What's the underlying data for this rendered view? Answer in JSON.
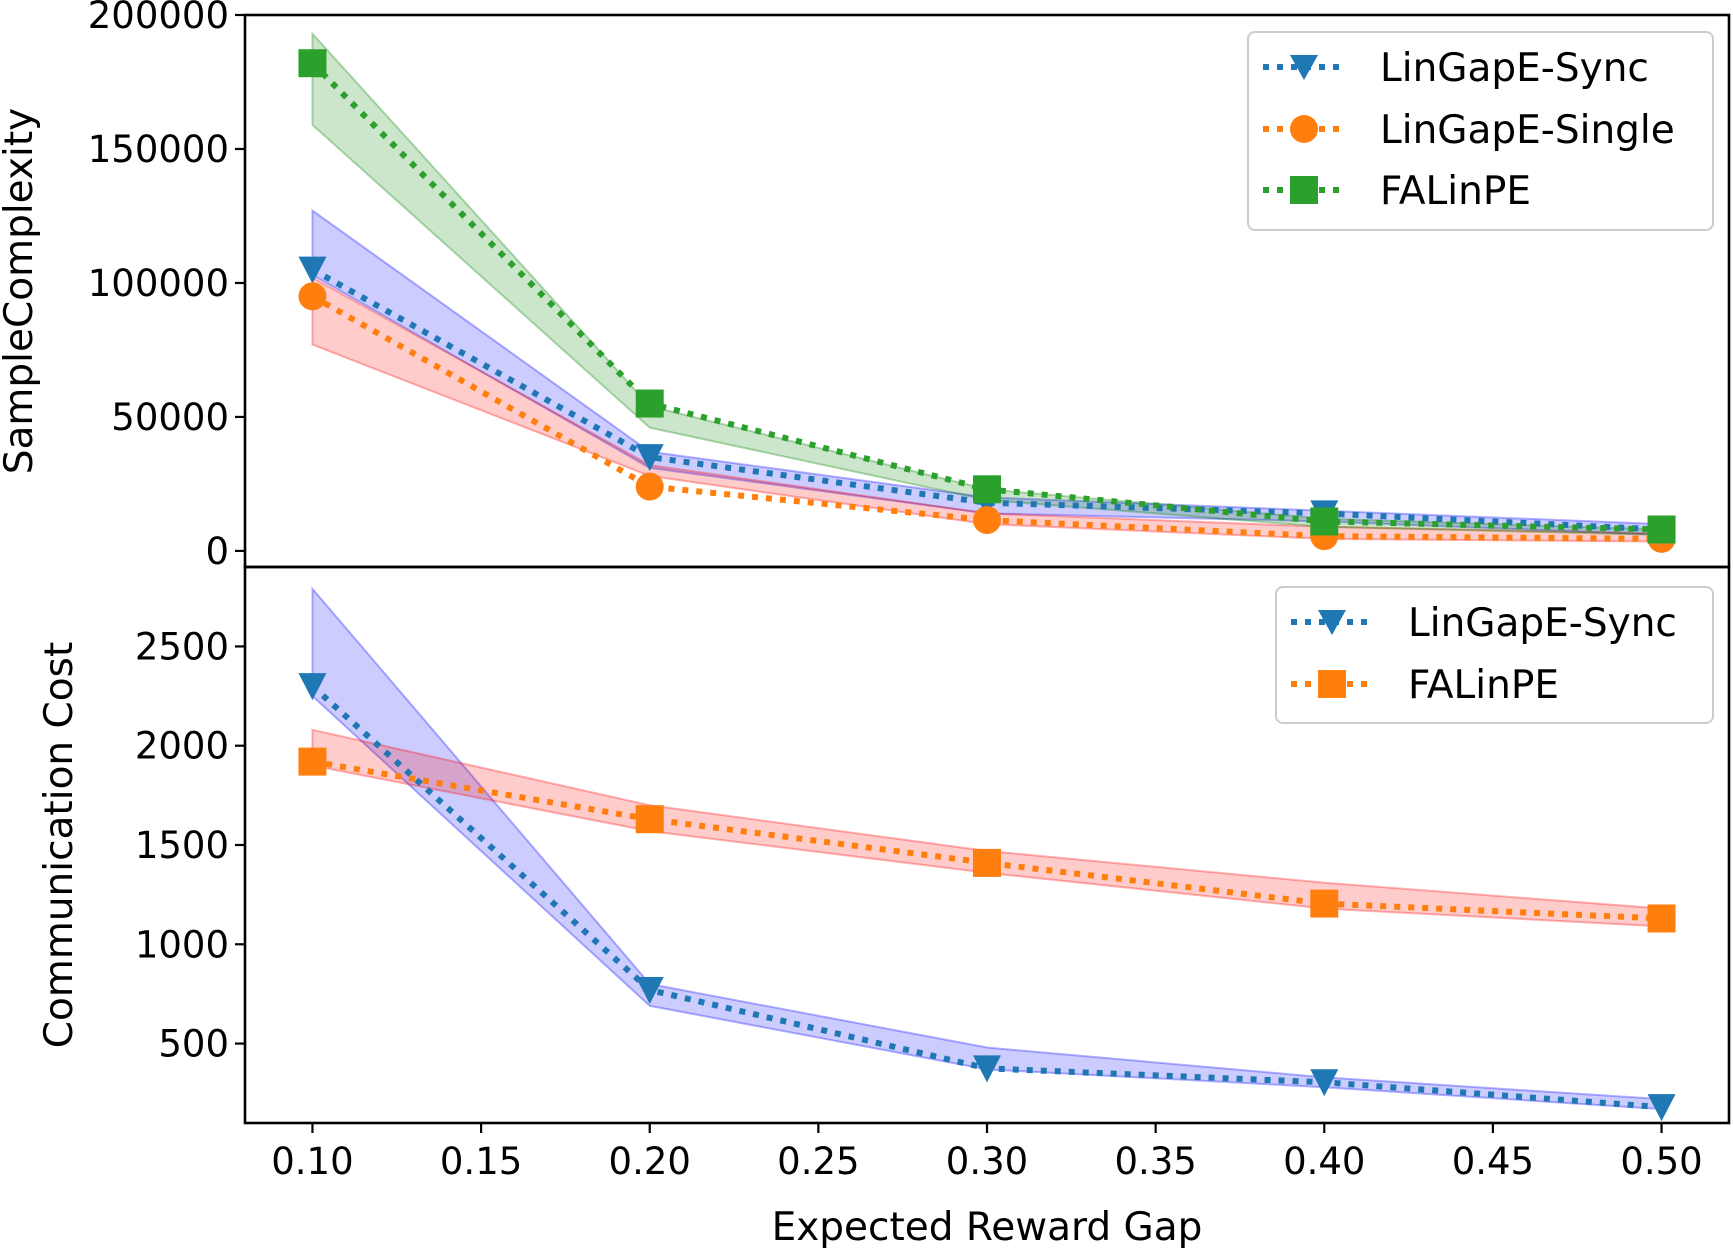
{
  "chart_data": [
    {
      "type": "line",
      "title": "",
      "xlabel": "",
      "ylabel": "SampleComplexity",
      "x": [
        0.1,
        0.2,
        0.3,
        0.4,
        0.5
      ],
      "xlim": [
        0.08,
        0.52
      ],
      "ylim": [
        -6000,
        200000
      ],
      "yticks": [
        0,
        50000,
        100000,
        150000,
        200000
      ],
      "ytick_labels": [
        "0",
        "50000",
        "100000",
        "150000",
        "200000"
      ],
      "legend_position": "top-right",
      "series": [
        {
          "name": "LinGapE-Sync",
          "color": "#1f77b4",
          "marker": "triangle-down",
          "values": [
            105000,
            35000,
            18000,
            14000,
            8000
          ],
          "band_color": "#0000ff",
          "band_lower": [
            103000,
            31000,
            14000,
            11000,
            6000
          ],
          "band_upper": [
            127000,
            37000,
            20000,
            15000,
            10000
          ]
        },
        {
          "name": "LinGapE-Single",
          "color": "#ff7f0e",
          "marker": "circle",
          "values": [
            95000,
            24000,
            11500,
            5500,
            4500
          ],
          "band_color": "#ff0000",
          "band_lower": [
            77000,
            28000,
            10000,
            4500,
            3500
          ],
          "band_upper": [
            102000,
            32000,
            14000,
            9000,
            6500
          ]
        },
        {
          "name": "FALinPE",
          "color": "#2ca02c",
          "marker": "square",
          "values": [
            182000,
            55000,
            23000,
            11000,
            8000
          ],
          "band_color": "#008000",
          "band_lower": [
            159000,
            46000,
            19000,
            9000,
            6000
          ],
          "band_upper": [
            193000,
            54000,
            23000,
            12000,
            8000
          ]
        }
      ]
    },
    {
      "type": "line",
      "title": "",
      "xlabel": "Expected Reward Gap",
      "ylabel": "Communication Cost",
      "x": [
        0.1,
        0.2,
        0.3,
        0.4,
        0.5
      ],
      "xlim": [
        0.08,
        0.52
      ],
      "ylim": [
        100,
        2900
      ],
      "xticks": [
        0.1,
        0.15,
        0.2,
        0.25,
        0.3,
        0.35,
        0.4,
        0.45,
        0.5
      ],
      "xtick_labels": [
        "0.10",
        "0.15",
        "0.20",
        "0.25",
        "0.30",
        "0.35",
        "0.40",
        "0.45",
        "0.50"
      ],
      "yticks": [
        500,
        1000,
        1500,
        2000,
        2500
      ],
      "ytick_labels": [
        "500",
        "1000",
        "1500",
        "2000",
        "2500"
      ],
      "legend_position": "top-right",
      "series": [
        {
          "name": "LinGapE-Sync",
          "color": "#1f77b4",
          "marker": "triangle-down",
          "values": [
            2300,
            770,
            375,
            305,
            180
          ],
          "band_color": "#0000ff",
          "band_lower": [
            2250,
            690,
            370,
            280,
            170
          ],
          "band_upper": [
            2790,
            800,
            480,
            330,
            220
          ]
        },
        {
          "name": "FALinPE",
          "color": "#ff7f0e",
          "marker": "square",
          "values": [
            1920,
            1630,
            1410,
            1205,
            1130
          ],
          "band_color": "#ff0000",
          "band_lower": [
            1900,
            1570,
            1360,
            1180,
            1090
          ],
          "band_upper": [
            2080,
            1700,
            1470,
            1310,
            1180
          ]
        }
      ]
    }
  ]
}
